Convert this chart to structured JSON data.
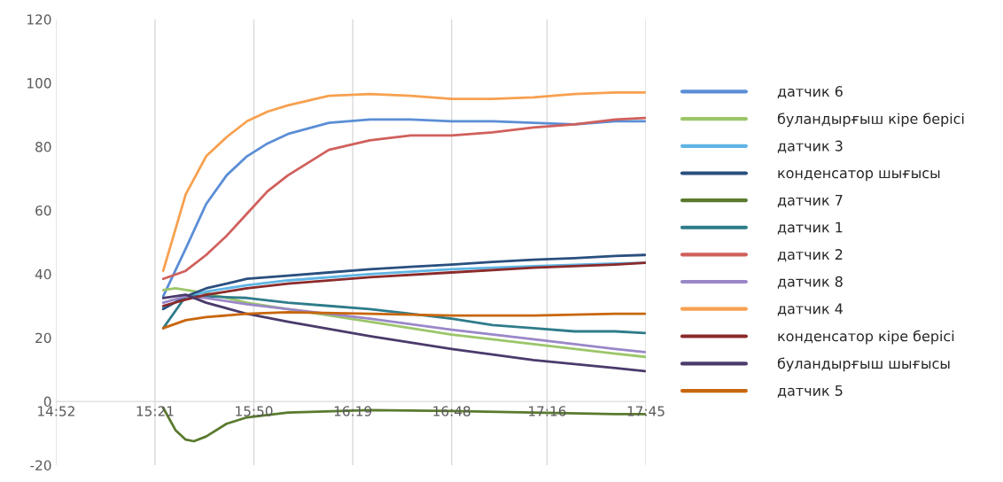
{
  "chart_data": {
    "type": "line",
    "grid": "x",
    "legend": "right",
    "xlim": [
      14.8667,
      17.75
    ],
    "ylim": [
      -20,
      120
    ],
    "xticks": [
      {
        "value": 14.8667,
        "label": "14:52"
      },
      {
        "value": 15.35,
        "label": "15:21"
      },
      {
        "value": 15.8333,
        "label": "15:50"
      },
      {
        "value": 16.3167,
        "label": "16:19"
      },
      {
        "value": 16.8,
        "label": "16:48"
      },
      {
        "value": 17.2667,
        "label": "17:16"
      },
      {
        "value": 17.75,
        "label": "17:45"
      }
    ],
    "yticks": [
      -20,
      0,
      20,
      40,
      60,
      80,
      100,
      120
    ],
    "series": [
      {
        "name": "датчик 6",
        "color": "#5b8ed6",
        "x": [
          15.39,
          15.5,
          15.6,
          15.7,
          15.8,
          15.9,
          16.0,
          16.2,
          16.4,
          16.6,
          16.8,
          17.0,
          17.2,
          17.4,
          17.6,
          17.745
        ],
        "values": [
          33,
          48,
          62,
          71,
          77,
          81,
          84,
          87.5,
          88.5,
          88.5,
          88,
          88,
          87.5,
          87,
          88,
          88
        ]
      },
      {
        "name": "буландырғыш кіре берісі",
        "color": "#9bc66a",
        "x": [
          15.39,
          15.45,
          15.6,
          15.8,
          16.0,
          16.4,
          16.8,
          17.2,
          17.6,
          17.745
        ],
        "values": [
          35,
          35.5,
          34,
          31,
          29,
          25,
          21,
          18,
          15,
          14
        ]
      },
      {
        "name": "датчик 3",
        "color": "#5fb5e5",
        "x": [
          15.39,
          15.5,
          15.6,
          15.8,
          16.0,
          16.4,
          16.8,
          17.2,
          17.6,
          17.745
        ],
        "values": [
          29.5,
          32.5,
          34.5,
          36.5,
          38,
          40,
          41.5,
          42.5,
          43.3,
          43.5
        ]
      },
      {
        "name": "конденсатор шығысы",
        "color": "#2a4f7f",
        "x": [
          15.39,
          15.5,
          15.6,
          15.7,
          15.8,
          16.0,
          16.2,
          16.4,
          16.6,
          16.8,
          17.0,
          17.2,
          17.4,
          17.6,
          17.745
        ],
        "values": [
          29,
          33,
          35.5,
          37,
          38.5,
          39.5,
          40.5,
          41.5,
          42.3,
          43,
          43.8,
          44.5,
          45,
          45.7,
          46
        ]
      },
      {
        "name": "датчик 7",
        "color": "#5a7a2e",
        "x": [
          15.39,
          15.45,
          15.5,
          15.54,
          15.6,
          15.7,
          15.8,
          16.0,
          16.4,
          16.8,
          17.2,
          17.6,
          17.745
        ],
        "values": [
          -2,
          -9,
          -12,
          -12.5,
          -11,
          -7,
          -5,
          -3.5,
          -2.7,
          -3,
          -3.5,
          -4,
          -4
        ]
      },
      {
        "name": "датчик 1",
        "color": "#2e7c8a",
        "x": [
          15.39,
          15.5,
          15.6,
          15.8,
          16.0,
          16.2,
          16.4,
          16.6,
          16.8,
          17.0,
          17.2,
          17.4,
          17.6,
          17.745
        ],
        "values": [
          23,
          33,
          33,
          32.5,
          31,
          30,
          29,
          27.5,
          26,
          24,
          23,
          22,
          22,
          21.5
        ]
      },
      {
        "name": "датчик 2",
        "color": "#d0605c",
        "x": [
          15.39,
          15.5,
          15.6,
          15.7,
          15.8,
          15.9,
          16.0,
          16.2,
          16.4,
          16.6,
          16.8,
          17.0,
          17.2,
          17.4,
          17.6,
          17.745
        ],
        "values": [
          38.5,
          41,
          46,
          52,
          59,
          66,
          71,
          79,
          82,
          83.5,
          83.5,
          84.5,
          86,
          87,
          88.5,
          89
        ]
      },
      {
        "name": "датчик 8",
        "color": "#9a87c8",
        "x": [
          15.39,
          15.5,
          15.6,
          15.8,
          16.0,
          16.4,
          16.8,
          17.2,
          17.6,
          17.745
        ],
        "values": [
          31,
          33,
          32.5,
          30.5,
          29,
          26,
          22.5,
          19.5,
          16.5,
          15.5
        ]
      },
      {
        "name": "датчик 4",
        "color": "#f7a04f",
        "x": [
          15.39,
          15.5,
          15.6,
          15.7,
          15.8,
          15.9,
          16.0,
          16.2,
          16.4,
          16.6,
          16.8,
          17.0,
          17.2,
          17.4,
          17.6,
          17.745
        ],
        "values": [
          41,
          65,
          77,
          83,
          88,
          91,
          93,
          96,
          96.5,
          96,
          95,
          95,
          95.5,
          96.5,
          97,
          97
        ]
      },
      {
        "name": "конденсатор кіре берісі",
        "color": "#8b2a2a",
        "x": [
          15.39,
          15.5,
          15.6,
          15.8,
          16.0,
          16.4,
          16.8,
          17.2,
          17.6,
          17.745
        ],
        "values": [
          30,
          32,
          33.5,
          35.5,
          37,
          39,
          40.5,
          42,
          43,
          43.5
        ]
      },
      {
        "name": "буландырғыш шығысы",
        "color": "#4b3a6b",
        "x": [
          15.39,
          15.5,
          15.6,
          15.8,
          16.0,
          16.4,
          16.8,
          17.2,
          17.6,
          17.745
        ],
        "values": [
          32.5,
          33.5,
          31,
          27.5,
          25,
          20.5,
          16.5,
          13,
          10.5,
          9.5
        ]
      },
      {
        "name": "датчик 5",
        "color": "#c8660c",
        "x": [
          15.39,
          15.5,
          15.6,
          15.8,
          16.0,
          16.4,
          16.8,
          17.0,
          17.2,
          17.6,
          17.745
        ],
        "values": [
          23,
          25.5,
          26.5,
          27.5,
          28,
          27.5,
          27,
          27,
          27,
          27.5,
          27.5
        ]
      }
    ]
  }
}
